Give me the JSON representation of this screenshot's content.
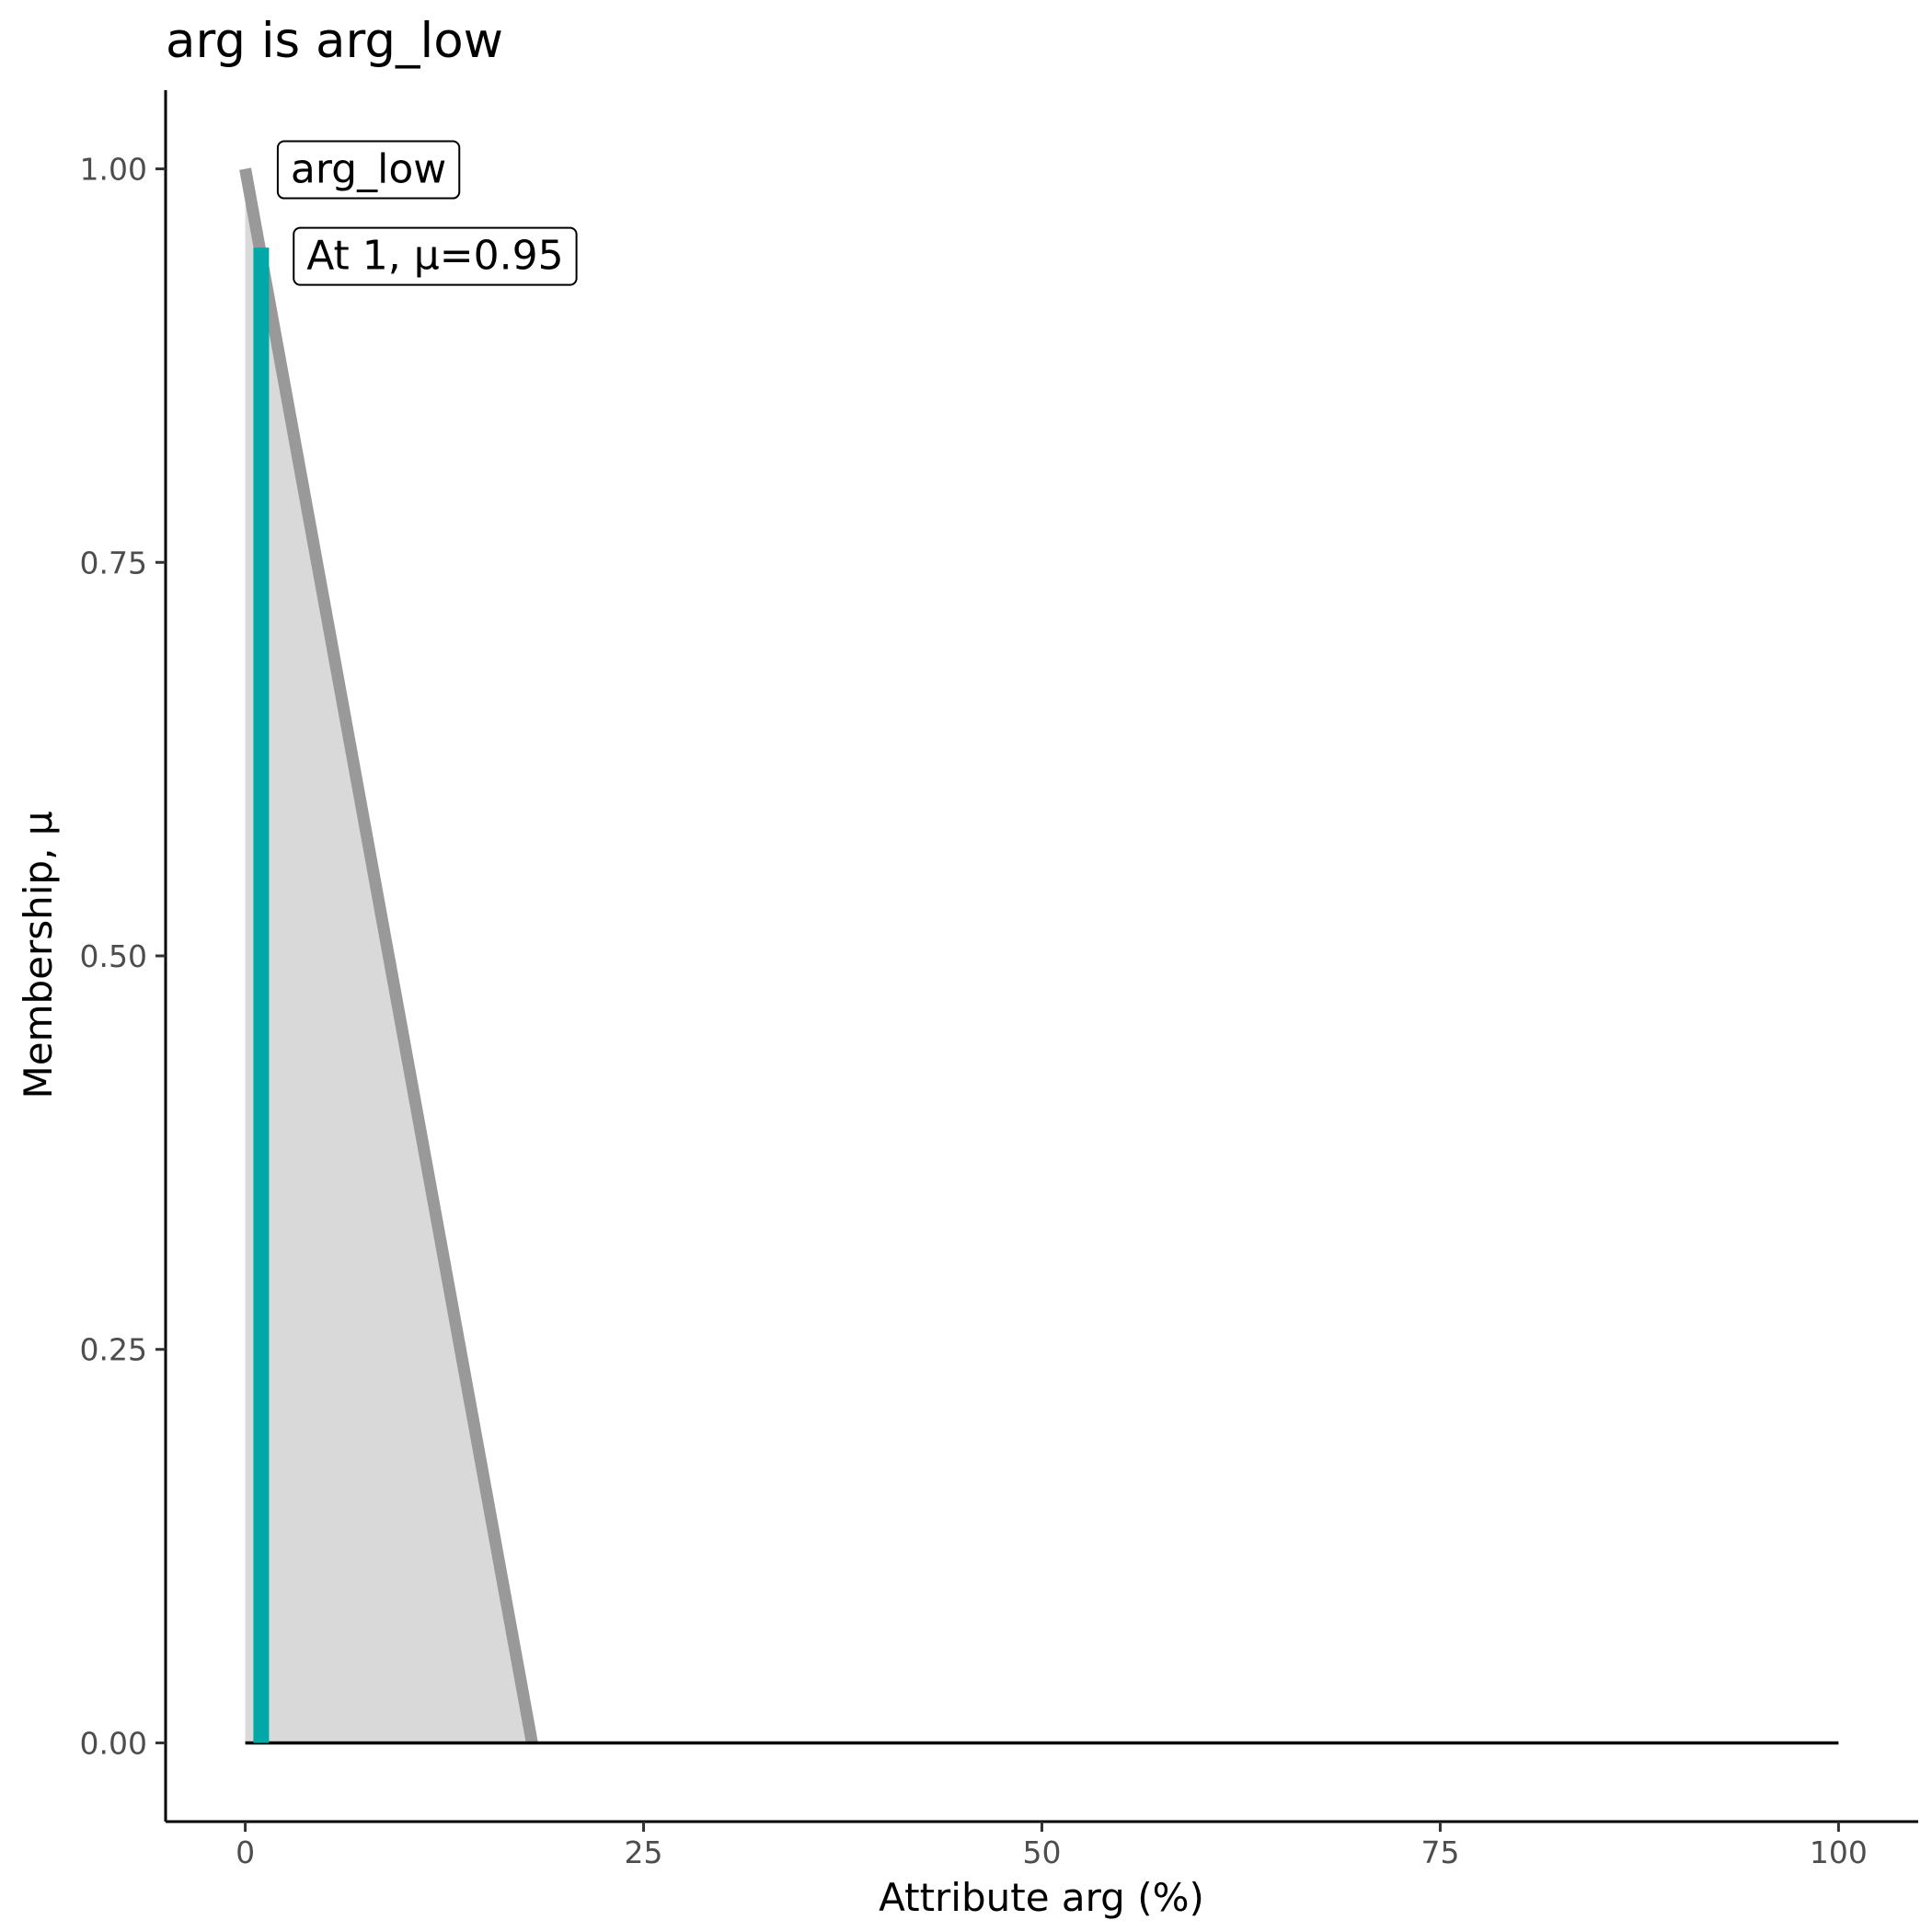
{
  "chart_data": {
    "type": "area",
    "title": "arg is arg_low",
    "xlabel": "Attribute arg (%)",
    "ylabel": "Membership, μ",
    "xlim": [
      -5,
      105
    ],
    "ylim": [
      -0.05,
      1.05
    ],
    "x_ticks": [
      0,
      25,
      50,
      75,
      100
    ],
    "x_tick_labels": [
      "0",
      "25",
      "50",
      "75",
      "100"
    ],
    "y_ticks": [
      0,
      0.25,
      0.5,
      0.75,
      1
    ],
    "y_tick_labels": [
      "0.00",
      "0.25",
      "0.50",
      "0.75",
      "1.00"
    ],
    "grid": false,
    "membership_function": {
      "name": "arg_low",
      "x": [
        0,
        18,
        100
      ],
      "y": [
        1,
        0,
        0
      ],
      "line_color": "#999999",
      "fill_color": "#d9d9d9"
    },
    "baseline": {
      "x": [
        0,
        100
      ],
      "y": 0,
      "color": "#000000"
    },
    "current_value": {
      "x": 1,
      "mu": 0.95,
      "color": "#00a8a8"
    },
    "annotations": [
      {
        "id": "set-label",
        "text": "arg_low",
        "x": 1,
        "y": 1.0
      },
      {
        "id": "value-label",
        "text": "At 1, μ=0.95",
        "x": 2,
        "y": 0.945
      }
    ]
  }
}
